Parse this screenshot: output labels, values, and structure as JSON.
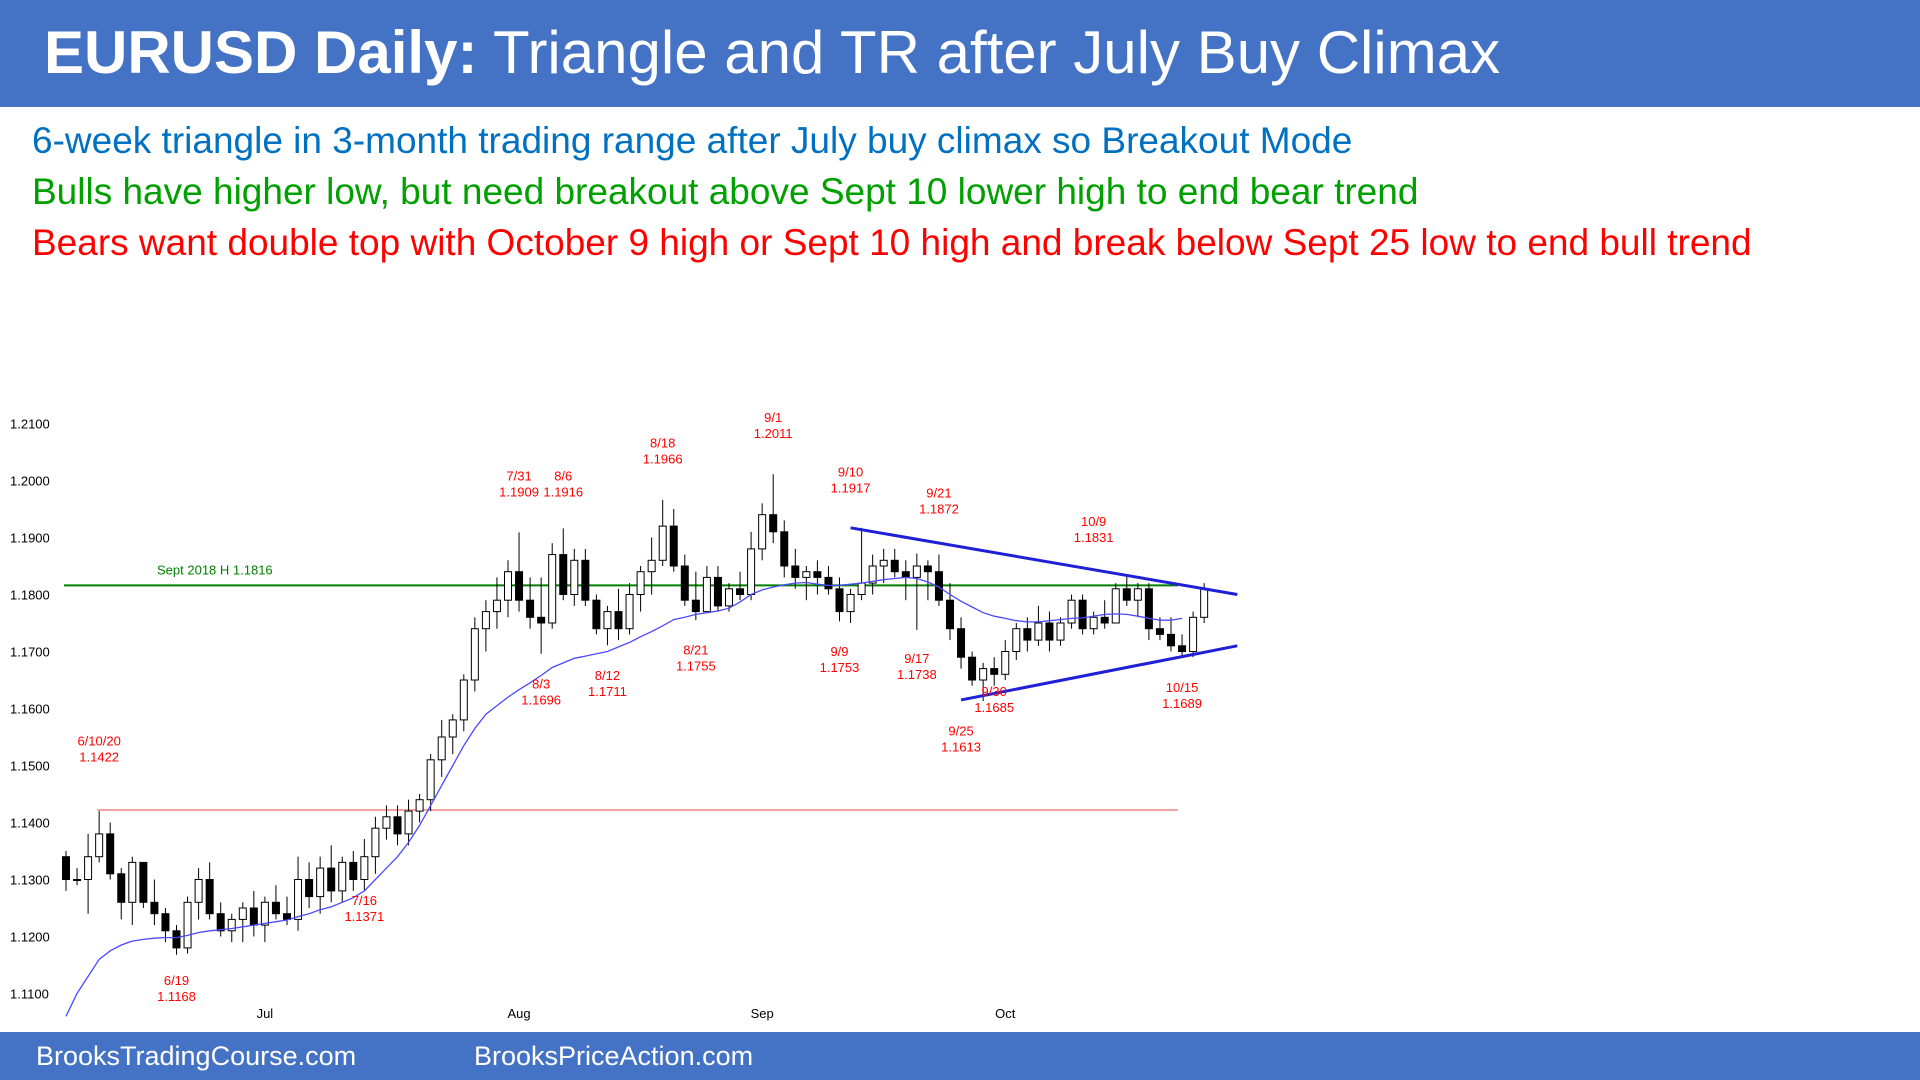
{
  "title": {
    "bold": "EURUSD Daily:",
    "rest": "Triangle and TR after July Buy Climax"
  },
  "subtitles": {
    "line1": "6-week triangle in 3-month trading range after July buy climax so Breakout Mode",
    "line2": "Bulls have higher low, but need breakout above Sept 10 lower high to end bear trend",
    "line3": "Bears want double top with October 9 high or Sept 10 high and break below Sept 25 low to end bull trend"
  },
  "footer": {
    "left": "BrooksTradingCourse.com",
    "right": "BrooksPriceAction.com"
  },
  "colors": {
    "header_bg": "#4472c4",
    "bull_candle": "#ffffff",
    "bear_candle": "#000000",
    "ema": "#4a4aff",
    "triangle": "#1f1fd6",
    "green_line": "#008000",
    "red_line": "#f08080",
    "annotation": "#ff0000"
  },
  "chart_data": {
    "type": "candlestick",
    "ylim": [
      1.105,
      1.215
    ],
    "yticks": [
      "1.1100",
      "1.1200",
      "1.1300",
      "1.1400",
      "1.1500",
      "1.1600",
      "1.1700",
      "1.1800",
      "1.1900",
      "1.2000",
      "1.2100"
    ],
    "xticks": [
      {
        "label": "Jul",
        "index": 18
      },
      {
        "label": "Aug",
        "index": 41
      },
      {
        "label": "Sep",
        "index": 63
      },
      {
        "label": "Oct",
        "index": 85
      }
    ],
    "candles": [
      [
        1.134,
        1.135,
        1.128,
        1.13
      ],
      [
        1.13,
        1.132,
        1.129,
        1.13
      ],
      [
        1.13,
        1.138,
        1.124,
        1.134
      ],
      [
        1.134,
        1.142,
        1.133,
        1.138
      ],
      [
        1.138,
        1.14,
        1.13,
        1.131
      ],
      [
        1.131,
        1.132,
        1.123,
        1.126
      ],
      [
        1.126,
        1.134,
        1.122,
        1.133
      ],
      [
        1.133,
        1.133,
        1.125,
        1.126
      ],
      [
        1.126,
        1.13,
        1.122,
        1.124
      ],
      [
        1.124,
        1.125,
        1.119,
        1.121
      ],
      [
        1.121,
        1.122,
        1.1168,
        1.118
      ],
      [
        1.118,
        1.127,
        1.117,
        1.126
      ],
      [
        1.126,
        1.132,
        1.123,
        1.13
      ],
      [
        1.13,
        1.133,
        1.123,
        1.124
      ],
      [
        1.124,
        1.126,
        1.12,
        1.121
      ],
      [
        1.121,
        1.124,
        1.119,
        1.123
      ],
      [
        1.123,
        1.126,
        1.119,
        1.125
      ],
      [
        1.125,
        1.128,
        1.12,
        1.122
      ],
      [
        1.122,
        1.127,
        1.119,
        1.126
      ],
      [
        1.126,
        1.129,
        1.123,
        1.124
      ],
      [
        1.124,
        1.127,
        1.122,
        1.123
      ],
      [
        1.123,
        1.134,
        1.121,
        1.13
      ],
      [
        1.13,
        1.133,
        1.125,
        1.127
      ],
      [
        1.127,
        1.134,
        1.124,
        1.132
      ],
      [
        1.132,
        1.136,
        1.126,
        1.128
      ],
      [
        1.128,
        1.134,
        1.126,
        1.133
      ],
      [
        1.133,
        1.135,
        1.128,
        1.13
      ],
      [
        1.13,
        1.1371,
        1.128,
        1.134
      ],
      [
        1.134,
        1.141,
        1.131,
        1.139
      ],
      [
        1.139,
        1.143,
        1.137,
        1.141
      ],
      [
        1.141,
        1.143,
        1.136,
        1.138
      ],
      [
        1.138,
        1.144,
        1.136,
        1.142
      ],
      [
        1.142,
        1.145,
        1.14,
        1.144
      ],
      [
        1.144,
        1.152,
        1.142,
        1.151
      ],
      [
        1.151,
        1.158,
        1.148,
        1.155
      ],
      [
        1.155,
        1.159,
        1.152,
        1.158
      ],
      [
        1.158,
        1.166,
        1.156,
        1.165
      ],
      [
        1.165,
        1.176,
        1.163,
        1.174
      ],
      [
        1.174,
        1.179,
        1.17,
        1.177
      ],
      [
        1.177,
        1.183,
        1.174,
        1.179
      ],
      [
        1.179,
        1.186,
        1.176,
        1.184
      ],
      [
        1.184,
        1.1909,
        1.177,
        1.179
      ],
      [
        1.179,
        1.183,
        1.174,
        1.176
      ],
      [
        1.176,
        1.183,
        1.1696,
        1.175
      ],
      [
        1.175,
        1.189,
        1.174,
        1.187
      ],
      [
        1.187,
        1.1916,
        1.179,
        1.18
      ],
      [
        1.18,
        1.188,
        1.178,
        1.186
      ],
      [
        1.186,
        1.188,
        1.178,
        1.179
      ],
      [
        1.179,
        1.18,
        1.173,
        1.174
      ],
      [
        1.174,
        1.178,
        1.1711,
        1.177
      ],
      [
        1.177,
        1.181,
        1.172,
        1.174
      ],
      [
        1.174,
        1.182,
        1.173,
        1.18
      ],
      [
        1.18,
        1.185,
        1.177,
        1.184
      ],
      [
        1.184,
        1.19,
        1.18,
        1.186
      ],
      [
        1.186,
        1.1966,
        1.185,
        1.192
      ],
      [
        1.192,
        1.195,
        1.184,
        1.185
      ],
      [
        1.185,
        1.187,
        1.178,
        1.179
      ],
      [
        1.179,
        1.184,
        1.1755,
        1.177
      ],
      [
        1.177,
        1.185,
        1.177,
        1.183
      ],
      [
        1.183,
        1.185,
        1.177,
        1.178
      ],
      [
        1.178,
        1.182,
        1.177,
        1.181
      ],
      [
        1.181,
        1.184,
        1.179,
        1.18
      ],
      [
        1.18,
        1.191,
        1.179,
        1.188
      ],
      [
        1.188,
        1.196,
        1.186,
        1.194
      ],
      [
        1.194,
        1.2011,
        1.189,
        1.191
      ],
      [
        1.191,
        1.193,
        1.183,
        1.185
      ],
      [
        1.185,
        1.188,
        1.181,
        1.183
      ],
      [
        1.183,
        1.185,
        1.179,
        1.184
      ],
      [
        1.184,
        1.186,
        1.18,
        1.183
      ],
      [
        1.183,
        1.185,
        1.18,
        1.181
      ],
      [
        1.181,
        1.183,
        1.1753,
        1.177
      ],
      [
        1.177,
        1.181,
        1.175,
        1.18
      ],
      [
        1.18,
        1.1917,
        1.179,
        1.182
      ],
      [
        1.182,
        1.187,
        1.18,
        1.185
      ],
      [
        1.185,
        1.188,
        1.182,
        1.186
      ],
      [
        1.186,
        1.188,
        1.183,
        1.184
      ],
      [
        1.184,
        1.186,
        1.179,
        1.183
      ],
      [
        1.183,
        1.1872,
        1.1738,
        1.185
      ],
      [
        1.185,
        1.186,
        1.179,
        1.184
      ],
      [
        1.184,
        1.187,
        1.178,
        1.179
      ],
      [
        1.179,
        1.182,
        1.172,
        1.174
      ],
      [
        1.174,
        1.176,
        1.167,
        1.169
      ],
      [
        1.169,
        1.17,
        1.164,
        1.165
      ],
      [
        1.165,
        1.168,
        1.1613,
        1.167
      ],
      [
        1.167,
        1.169,
        1.164,
        1.166
      ],
      [
        1.166,
        1.172,
        1.165,
        1.17
      ],
      [
        1.17,
        1.175,
        1.1685,
        1.174
      ],
      [
        1.174,
        1.176,
        1.17,
        1.172
      ],
      [
        1.172,
        1.178,
        1.171,
        1.175
      ],
      [
        1.175,
        1.177,
        1.17,
        1.172
      ],
      [
        1.172,
        1.176,
        1.171,
        1.175
      ],
      [
        1.175,
        1.18,
        1.174,
        1.179
      ],
      [
        1.179,
        1.18,
        1.173,
        1.174
      ],
      [
        1.174,
        1.177,
        1.173,
        1.176
      ],
      [
        1.176,
        1.179,
        1.174,
        1.175
      ],
      [
        1.175,
        1.182,
        1.175,
        1.181
      ],
      [
        1.181,
        1.1831,
        1.178,
        1.179
      ],
      [
        1.179,
        1.182,
        1.176,
        1.181
      ],
      [
        1.181,
        1.182,
        1.172,
        1.174
      ],
      [
        1.174,
        1.176,
        1.172,
        1.173
      ],
      [
        1.173,
        1.176,
        1.17,
        1.171
      ],
      [
        1.171,
        1.173,
        1.1689,
        1.17
      ],
      [
        1.17,
        1.177,
        1.169,
        1.176
      ],
      [
        1.176,
        1.182,
        1.175,
        1.181
      ]
    ],
    "ema": [
      1.106,
      1.11,
      1.113,
      1.116,
      1.1175,
      1.1185,
      1.1192,
      1.1195,
      1.1197,
      1.1198,
      1.1198,
      1.1202,
      1.1207,
      1.121,
      1.1212,
      1.1214,
      1.1217,
      1.122,
      1.1223,
      1.1226,
      1.1229,
      1.1235,
      1.124,
      1.1247,
      1.1252,
      1.126,
      1.1268,
      1.128,
      1.13,
      1.132,
      1.134,
      1.1365,
      1.1395,
      1.143,
      1.1465,
      1.15,
      1.1535,
      1.1565,
      1.159,
      1.1605,
      1.162,
      1.1633,
      1.1645,
      1.1658,
      1.1672,
      1.168,
      1.1688,
      1.1692,
      1.1696,
      1.17,
      1.1708,
      1.1716,
      1.1726,
      1.1735,
      1.1745,
      1.1756,
      1.176,
      1.1765,
      1.1768,
      1.1771,
      1.1776,
      1.1787,
      1.18,
      1.1808,
      1.1813,
      1.1817,
      1.182,
      1.1821,
      1.1818,
      1.1816,
      1.1816,
      1.1818,
      1.182,
      1.1823,
      1.1826,
      1.1828,
      1.183,
      1.1828,
      1.1822,
      1.1813,
      1.18,
      1.1788,
      1.1778,
      1.1768,
      1.1762,
      1.1758,
      1.1754,
      1.1752,
      1.1752,
      1.1754,
      1.1756,
      1.1758,
      1.1759,
      1.1762,
      1.1765,
      1.1766,
      1.1765,
      1.1762,
      1.1758,
      1.1755,
      1.1755,
      1.1758
    ],
    "horizontal_lines": [
      {
        "label": "Sept 2018 H 1.1816",
        "value": 1.1816,
        "color": "#008000",
        "from_index": 0,
        "to_index": 106
      },
      {
        "label": "",
        "value": 1.1422,
        "color": "#f08080",
        "from_index": 3,
        "to_index": 106
      }
    ],
    "triangle_lines": [
      {
        "from": [
          71,
          1.1917
        ],
        "to": [
          106,
          1.18
        ]
      },
      {
        "from": [
          81,
          1.1615
        ],
        "to": [
          106,
          1.171
        ]
      }
    ],
    "annotations": [
      {
        "date": "6/10/20",
        "price": "1.1422",
        "index": 3,
        "y": 1.1535
      },
      {
        "date": "6/19",
        "price": "1.1168",
        "index": 10,
        "y": 1.1115
      },
      {
        "date": "7/16",
        "price": "1.1371",
        "index": 27,
        "y": 1.1255
      },
      {
        "date": "7/31",
        "price": "1.1909",
        "index": 41,
        "y": 1.2
      },
      {
        "date": "8/3",
        "price": "1.1696",
        "index": 43,
        "y": 1.1635
      },
      {
        "date": "8/6",
        "price": "1.1916",
        "index": 45,
        "y": 1.2
      },
      {
        "date": "8/12",
        "price": "1.1711",
        "index": 49,
        "y": 1.165
      },
      {
        "date": "8/18",
        "price": "1.1966",
        "index": 54,
        "y": 1.2058
      },
      {
        "date": "8/21",
        "price": "1.1755",
        "index": 57,
        "y": 1.1695
      },
      {
        "date": "9/1",
        "price": "1.2011",
        "index": 64,
        "y": 1.2103
      },
      {
        "date": "9/9",
        "price": "1.1753",
        "index": 70,
        "y": 1.1692
      },
      {
        "date": "9/10",
        "price": "1.1917",
        "index": 71,
        "y": 1.2007
      },
      {
        "date": "9/17",
        "price": "1.1738",
        "index": 77,
        "y": 1.168
      },
      {
        "date": "9/21",
        "price": "1.1872",
        "index": 79,
        "y": 1.197
      },
      {
        "date": "9/25",
        "price": "1.1613",
        "index": 81,
        "y": 1.1553
      },
      {
        "date": "9/30",
        "price": "1.1685",
        "index": 84,
        "y": 1.1622
      },
      {
        "date": "10/9",
        "price": "1.1831",
        "index": 93,
        "y": 1.192
      },
      {
        "date": "10/15",
        "price": "1.1689",
        "index": 101,
        "y": 1.1629
      }
    ]
  }
}
